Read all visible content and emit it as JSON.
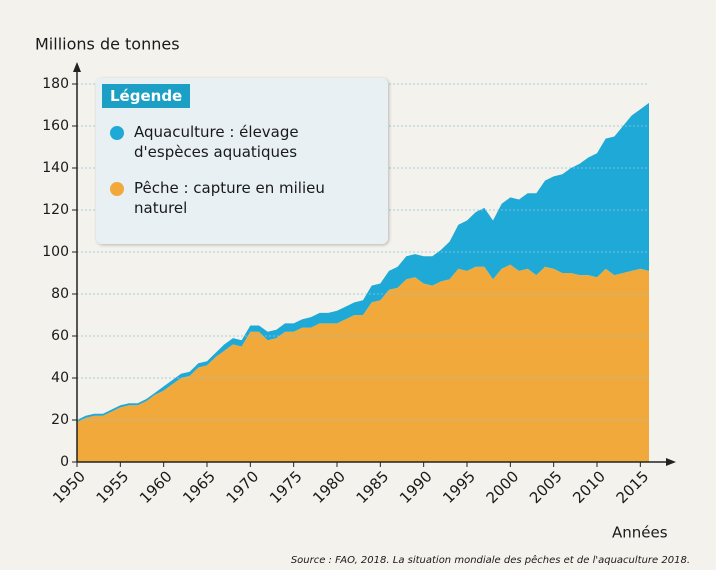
{
  "chart_data": {
    "type": "stacked_area",
    "y_label": "Millions de tonnes",
    "x_label": "Années",
    "legend_title": "Légende",
    "source": "Source : FAO, 2018. La situation mondiale des pêches et de l'aquaculture 2018.",
    "x": [
      1950,
      1951,
      1952,
      1953,
      1954,
      1955,
      1956,
      1957,
      1958,
      1959,
      1960,
      1961,
      1962,
      1963,
      1964,
      1965,
      1966,
      1967,
      1968,
      1969,
      1970,
      1971,
      1972,
      1973,
      1974,
      1975,
      1976,
      1977,
      1978,
      1979,
      1980,
      1981,
      1982,
      1983,
      1984,
      1985,
      1986,
      1987,
      1988,
      1989,
      1990,
      1991,
      1992,
      1993,
      1994,
      1995,
      1996,
      1997,
      1998,
      1999,
      2000,
      2001,
      2002,
      2003,
      2004,
      2005,
      2006,
      2007,
      2008,
      2009,
      2010,
      2011,
      2012,
      2013,
      2014,
      2015,
      2016
    ],
    "series": [
      {
        "name": "Pêche : capture en milieu naturel",
        "color": "#f2a93b",
        "values": [
          19,
          21,
          22,
          22,
          24,
          26,
          27,
          27,
          29,
          32,
          34,
          37,
          40,
          41,
          45,
          46,
          50,
          53,
          56,
          55,
          62,
          62,
          58,
          59,
          62,
          62,
          64,
          64,
          66,
          66,
          66,
          68,
          70,
          70,
          76,
          77,
          82,
          83,
          87,
          88,
          85,
          84,
          86,
          87,
          92,
          91,
          93,
          93,
          87,
          92,
          94,
          91,
          92,
          89,
          93,
          92,
          90,
          90,
          89,
          89,
          88,
          92,
          89,
          90,
          91,
          92,
          91
        ]
      },
      {
        "name": "Aquaculture : élevage d'espèces aquatiques",
        "color": "#1fa9d6",
        "values": [
          1,
          1,
          1,
          1,
          1,
          1,
          1,
          1,
          1,
          1,
          2,
          2,
          2,
          2,
          2,
          2,
          2,
          3,
          3,
          3,
          3,
          3,
          4,
          4,
          4,
          4,
          4,
          5,
          5,
          5,
          6,
          6,
          6,
          7,
          8,
          8,
          9,
          10,
          11,
          11,
          13,
          14,
          15,
          18,
          21,
          24,
          26,
          28,
          28,
          31,
          32,
          34,
          36,
          39,
          41,
          44,
          47,
          50,
          53,
          56,
          59,
          62,
          66,
          70,
          74,
          76,
          80
        ]
      }
    ],
    "xlim": [
      1950,
      2016
    ],
    "xticks": [
      1950,
      1955,
      1960,
      1965,
      1970,
      1975,
      1980,
      1985,
      1990,
      1995,
      2000,
      2005,
      2010,
      2015
    ],
    "ylim": [
      0,
      180
    ],
    "yticks": [
      0,
      20,
      40,
      60,
      80,
      100,
      120,
      140,
      160,
      180
    ],
    "grid": true
  }
}
